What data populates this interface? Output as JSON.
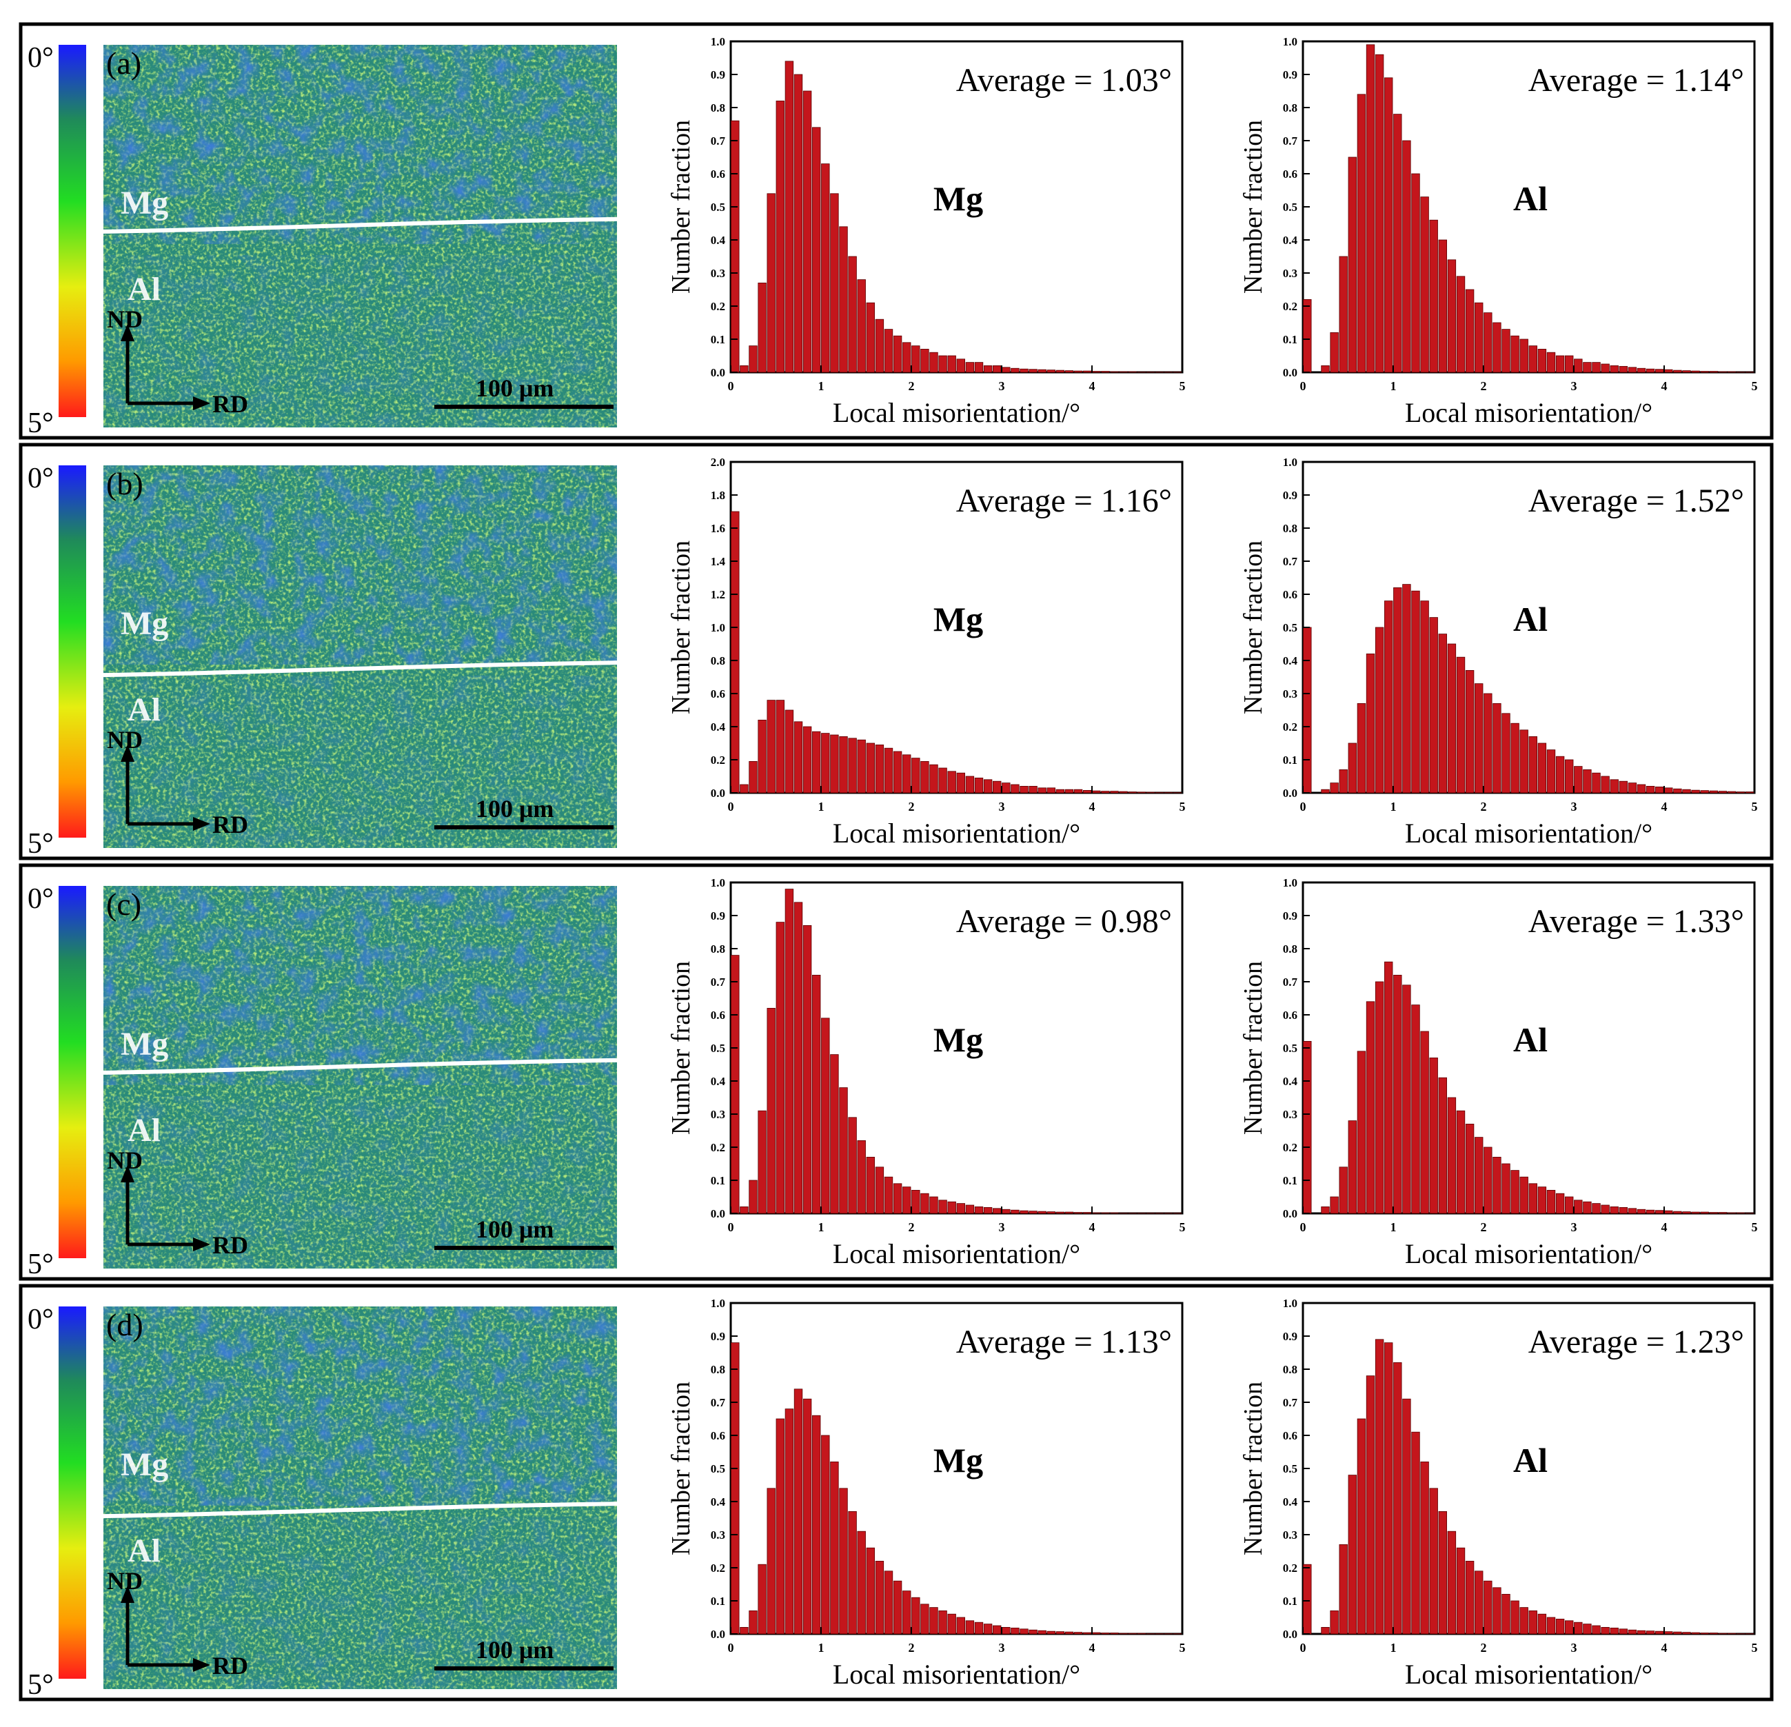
{
  "legend": {
    "top_label": "0°",
    "bottom_label": "5°",
    "colors": [
      "#1a1aff",
      "#1f8a5a",
      "#22dd22",
      "#e6ee10",
      "#ff9a00",
      "#ff1a1a"
    ]
  },
  "map_labels": {
    "top_phase": "Mg",
    "bottom_phase": "Al",
    "nd": "ND",
    "rd": "RD",
    "scale": "100 μm"
  },
  "map_colors": {
    "deep_blue": "#1b2fa8",
    "teal": "#2a8a7a",
    "green": "#3ec83a",
    "yellow_green": "#9ee03a",
    "red": "#e02020",
    "boundary": "#ffffff"
  },
  "bar_color": "#c4161c",
  "panels": [
    {
      "label": "(a)"
    },
    {
      "label": "(b)"
    },
    {
      "label": "(c)"
    },
    {
      "label": "(d)"
    }
  ],
  "chart_data": [
    {
      "type": "bar",
      "panel": "(a)",
      "material": "Mg",
      "title": "Average = 1.03°",
      "xlabel": "Local misorientation/°",
      "ylabel": "Number fraction",
      "xlim": [
        0,
        5
      ],
      "ylim": [
        0,
        1.0
      ],
      "yticks": [
        "0.0",
        "0.1",
        "0.2",
        "0.3",
        "0.4",
        "0.5",
        "0.6",
        "0.7",
        "0.8",
        "0.9",
        "1.0"
      ],
      "xticks": [
        "0",
        "1",
        "2",
        "3",
        "4",
        "5"
      ],
      "bin_width": 0.1,
      "values": [
        0.76,
        0.02,
        0.08,
        0.27,
        0.54,
        0.82,
        0.94,
        0.9,
        0.85,
        0.74,
        0.63,
        0.54,
        0.44,
        0.35,
        0.28,
        0.21,
        0.16,
        0.13,
        0.11,
        0.09,
        0.08,
        0.07,
        0.06,
        0.05,
        0.05,
        0.04,
        0.03,
        0.03,
        0.02,
        0.02,
        0.015,
        0.012,
        0.01,
        0.009,
        0.008,
        0.007,
        0.006,
        0.005,
        0.004,
        0.004,
        0.003,
        0.003,
        0.002,
        0.002,
        0.002,
        0.001,
        0.001,
        0.001,
        0.001,
        0.001
      ]
    },
    {
      "type": "bar",
      "panel": "(a)",
      "material": "Al",
      "title": "Average = 1.14°",
      "xlabel": "Local misorientation/°",
      "ylabel": "Number fraction",
      "xlim": [
        0,
        5
      ],
      "ylim": [
        0,
        1.0
      ],
      "yticks": [
        "0.0",
        "0.1",
        "0.2",
        "0.3",
        "0.4",
        "0.5",
        "0.6",
        "0.7",
        "0.8",
        "0.9",
        "1.0"
      ],
      "xticks": [
        "0",
        "1",
        "2",
        "3",
        "4",
        "5"
      ],
      "bin_width": 0.1,
      "values": [
        0.22,
        0.0,
        0.02,
        0.12,
        0.35,
        0.65,
        0.84,
        0.99,
        0.96,
        0.89,
        0.78,
        0.7,
        0.6,
        0.53,
        0.46,
        0.4,
        0.34,
        0.29,
        0.25,
        0.21,
        0.18,
        0.15,
        0.13,
        0.11,
        0.1,
        0.08,
        0.07,
        0.06,
        0.05,
        0.05,
        0.04,
        0.03,
        0.03,
        0.025,
        0.02,
        0.018,
        0.015,
        0.012,
        0.01,
        0.009,
        0.008,
        0.006,
        0.005,
        0.004,
        0.003,
        0.003,
        0.002,
        0.002,
        0.001,
        0.001
      ]
    },
    {
      "type": "bar",
      "panel": "(b)",
      "material": "Mg",
      "title": "Average = 1.16°",
      "xlabel": "Local misorientation/°",
      "ylabel": "Number fraction",
      "xlim": [
        0,
        5
      ],
      "ylim": [
        0,
        2.0
      ],
      "yticks": [
        "0.0",
        "0.2",
        "0.4",
        "0.6",
        "0.8",
        "1.0",
        "1.2",
        "1.4",
        "1.6",
        "1.8",
        "2.0"
      ],
      "xticks": [
        "0",
        "1",
        "2",
        "3",
        "4",
        "5"
      ],
      "bin_width": 0.1,
      "values": [
        1.7,
        0.05,
        0.19,
        0.44,
        0.56,
        0.56,
        0.5,
        0.43,
        0.4,
        0.37,
        0.36,
        0.35,
        0.34,
        0.33,
        0.32,
        0.3,
        0.29,
        0.27,
        0.25,
        0.23,
        0.21,
        0.19,
        0.17,
        0.15,
        0.13,
        0.12,
        0.1,
        0.09,
        0.08,
        0.07,
        0.06,
        0.05,
        0.04,
        0.04,
        0.03,
        0.03,
        0.02,
        0.02,
        0.02,
        0.015,
        0.012,
        0.01,
        0.01,
        0.008,
        0.006,
        0.005,
        0.004,
        0.003,
        0.003,
        0.002
      ]
    },
    {
      "type": "bar",
      "panel": "(b)",
      "material": "Al",
      "title": "Average = 1.52°",
      "xlabel": "Local misorientation/°",
      "ylabel": "Number fraction",
      "xlim": [
        0,
        5
      ],
      "ylim": [
        0,
        1.0
      ],
      "yticks": [
        "0.0",
        "0.1",
        "0.2",
        "0.3",
        "0.4",
        "0.5",
        "0.6",
        "0.7",
        "0.8",
        "0.9",
        "1.0"
      ],
      "xticks": [
        "0",
        "1",
        "2",
        "3",
        "4",
        "5"
      ],
      "bin_width": 0.1,
      "values": [
        0.5,
        0.0,
        0.01,
        0.03,
        0.07,
        0.15,
        0.27,
        0.42,
        0.5,
        0.58,
        0.62,
        0.63,
        0.61,
        0.58,
        0.53,
        0.48,
        0.45,
        0.41,
        0.37,
        0.33,
        0.3,
        0.27,
        0.24,
        0.21,
        0.19,
        0.17,
        0.15,
        0.13,
        0.11,
        0.1,
        0.08,
        0.07,
        0.06,
        0.05,
        0.04,
        0.035,
        0.03,
        0.025,
        0.02,
        0.018,
        0.015,
        0.012,
        0.01,
        0.008,
        0.007,
        0.006,
        0.005,
        0.004,
        0.003,
        0.003
      ]
    },
    {
      "type": "bar",
      "panel": "(c)",
      "material": "Mg",
      "title": "Average = 0.98°",
      "xlabel": "Local misorientation/°",
      "ylabel": "Number fraction",
      "xlim": [
        0,
        5
      ],
      "ylim": [
        0,
        1.0
      ],
      "yticks": [
        "0.0",
        "0.1",
        "0.2",
        "0.3",
        "0.4",
        "0.5",
        "0.6",
        "0.7",
        "0.8",
        "0.9",
        "1.0"
      ],
      "xticks": [
        "0",
        "1",
        "2",
        "3",
        "4",
        "5"
      ],
      "bin_width": 0.1,
      "values": [
        0.78,
        0.02,
        0.1,
        0.31,
        0.62,
        0.88,
        0.98,
        0.94,
        0.87,
        0.72,
        0.59,
        0.48,
        0.38,
        0.29,
        0.22,
        0.17,
        0.14,
        0.11,
        0.09,
        0.08,
        0.07,
        0.06,
        0.05,
        0.04,
        0.035,
        0.03,
        0.025,
        0.02,
        0.018,
        0.015,
        0.012,
        0.01,
        0.008,
        0.007,
        0.006,
        0.005,
        0.004,
        0.004,
        0.003,
        0.003,
        0.002,
        0.002,
        0.002,
        0.001,
        0.001,
        0.001,
        0.001,
        0.001,
        0.001,
        0.001
      ]
    },
    {
      "type": "bar",
      "panel": "(c)",
      "material": "Al",
      "title": "Average = 1.33°",
      "xlabel": "Local misorientation/°",
      "ylabel": "Number fraction",
      "xlim": [
        0,
        5
      ],
      "ylim": [
        0,
        1.0
      ],
      "yticks": [
        "0.0",
        "0.1",
        "0.2",
        "0.3",
        "0.4",
        "0.5",
        "0.6",
        "0.7",
        "0.8",
        "0.9",
        "1.0"
      ],
      "xticks": [
        "0",
        "1",
        "2",
        "3",
        "4",
        "5"
      ],
      "bin_width": 0.1,
      "values": [
        0.52,
        0.0,
        0.02,
        0.05,
        0.14,
        0.28,
        0.49,
        0.64,
        0.7,
        0.76,
        0.72,
        0.69,
        0.63,
        0.55,
        0.47,
        0.41,
        0.35,
        0.31,
        0.27,
        0.23,
        0.2,
        0.17,
        0.15,
        0.13,
        0.11,
        0.09,
        0.08,
        0.07,
        0.06,
        0.05,
        0.04,
        0.035,
        0.03,
        0.025,
        0.02,
        0.018,
        0.015,
        0.012,
        0.01,
        0.009,
        0.008,
        0.006,
        0.005,
        0.004,
        0.004,
        0.003,
        0.003,
        0.002,
        0.002,
        0.001
      ]
    },
    {
      "type": "bar",
      "panel": "(d)",
      "material": "Mg",
      "title": "Average = 1.13°",
      "xlabel": "Local misorientation/°",
      "ylabel": "Number fraction",
      "xlim": [
        0,
        5
      ],
      "ylim": [
        0,
        1.0
      ],
      "yticks": [
        "0.0",
        "0.1",
        "0.2",
        "0.3",
        "0.4",
        "0.5",
        "0.6",
        "0.7",
        "0.8",
        "0.9",
        "1.0"
      ],
      "xticks": [
        "0",
        "1",
        "2",
        "3",
        "4",
        "5"
      ],
      "bin_width": 0.1,
      "values": [
        0.88,
        0.02,
        0.07,
        0.21,
        0.44,
        0.65,
        0.68,
        0.74,
        0.71,
        0.66,
        0.6,
        0.52,
        0.44,
        0.37,
        0.31,
        0.26,
        0.22,
        0.19,
        0.16,
        0.13,
        0.11,
        0.09,
        0.08,
        0.07,
        0.06,
        0.05,
        0.04,
        0.035,
        0.03,
        0.025,
        0.02,
        0.018,
        0.015,
        0.012,
        0.01,
        0.008,
        0.007,
        0.006,
        0.005,
        0.004,
        0.004,
        0.003,
        0.003,
        0.002,
        0.002,
        0.002,
        0.001,
        0.001,
        0.001,
        0.001
      ]
    },
    {
      "type": "bar",
      "panel": "(d)",
      "material": "Al",
      "title": "Average = 1.23°",
      "xlabel": "Local misorientation/°",
      "ylabel": "Number fraction",
      "xlim": [
        0,
        5
      ],
      "ylim": [
        0,
        1.0
      ],
      "yticks": [
        "0.0",
        "0.1",
        "0.2",
        "0.3",
        "0.4",
        "0.5",
        "0.6",
        "0.7",
        "0.8",
        "0.9",
        "1.0"
      ],
      "xticks": [
        "0",
        "1",
        "2",
        "3",
        "4",
        "5"
      ],
      "bin_width": 0.1,
      "values": [
        0.21,
        0.0,
        0.02,
        0.07,
        0.27,
        0.48,
        0.65,
        0.78,
        0.89,
        0.88,
        0.82,
        0.71,
        0.61,
        0.52,
        0.44,
        0.37,
        0.31,
        0.26,
        0.22,
        0.19,
        0.16,
        0.14,
        0.12,
        0.1,
        0.08,
        0.07,
        0.06,
        0.05,
        0.045,
        0.04,
        0.035,
        0.03,
        0.025,
        0.02,
        0.018,
        0.015,
        0.012,
        0.01,
        0.009,
        0.008,
        0.007,
        0.006,
        0.005,
        0.004,
        0.003,
        0.003,
        0.002,
        0.002,
        0.001,
        0.001
      ]
    }
  ]
}
